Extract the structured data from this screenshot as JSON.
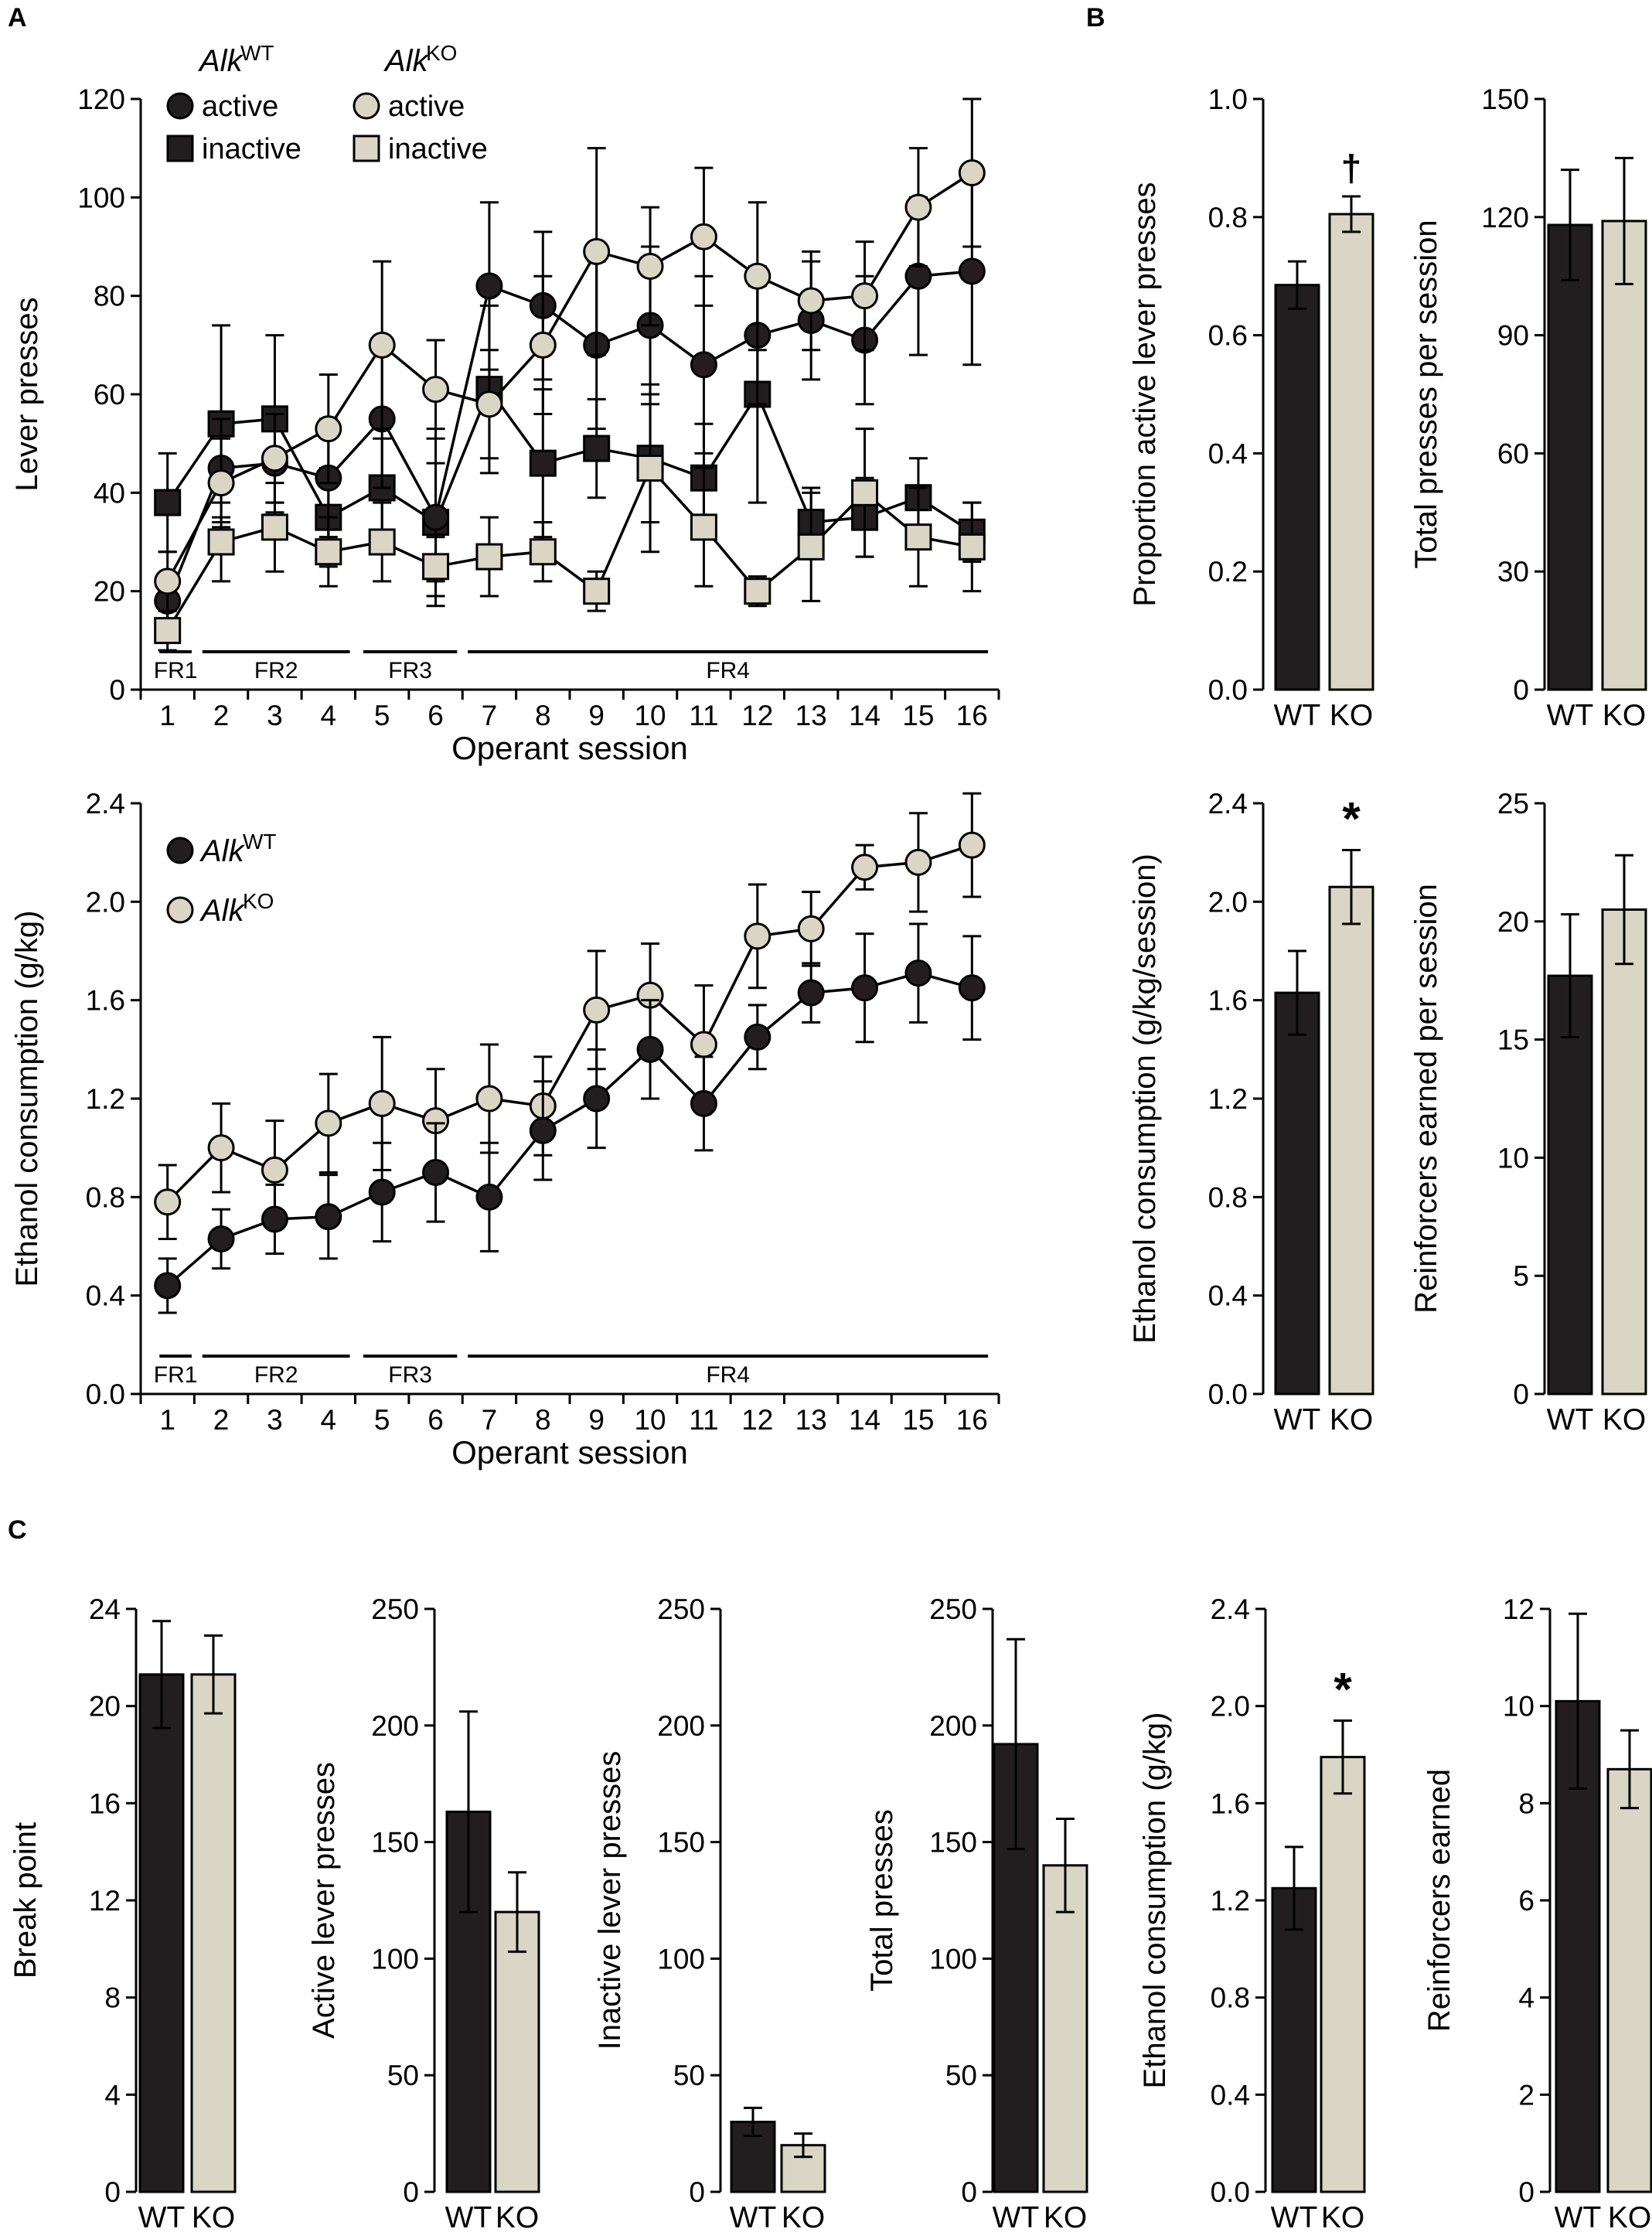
{
  "panel_labels": {
    "a": "A",
    "b": "B",
    "c": "C"
  },
  "colors": {
    "wt": "#221e1f",
    "ko": "#d9d6c5",
    "stroke": "#000000"
  },
  "chart_data": [
    {
      "id": "A-top",
      "type": "line",
      "panel": "A",
      "xlabel": "Operant session",
      "ylabel": "Lever presses",
      "ylim": [
        0,
        120
      ],
      "yticks": [
        0,
        20,
        40,
        60,
        80,
        100,
        120
      ],
      "x": [
        1,
        2,
        3,
        4,
        5,
        6,
        7,
        8,
        9,
        10,
        11,
        12,
        13,
        14,
        15,
        16
      ],
      "legend_group_labels": {
        "wt": "Alk",
        "wt_sup": "WT",
        "ko": "Alk",
        "ko_sup": "KO"
      },
      "series": [
        {
          "name": "Alk WT active",
          "legend_label": "active",
          "group": "wt",
          "marker": "circle",
          "values": [
            18,
            45,
            46,
            43,
            55,
            35,
            82,
            78,
            70,
            74,
            66,
            72,
            75,
            71,
            84,
            85
          ],
          "err": [
            5,
            10,
            10,
            12,
            14,
            18,
            17,
            15,
            17,
            16,
            18,
            14,
            12,
            13,
            16,
            19
          ]
        },
        {
          "name": "Alk KO active",
          "legend_label": "active",
          "group": "ko",
          "marker": "circle",
          "values": [
            22,
            42,
            47,
            53,
            70,
            61,
            58,
            70,
            89,
            86,
            92,
            84,
            79,
            80,
            98,
            105
          ],
          "err": [
            6,
            9,
            9,
            11,
            17,
            10,
            11,
            14,
            21,
            12,
            14,
            15,
            10,
            11,
            12,
            15
          ]
        },
        {
          "name": "Alk WT inactive",
          "legend_label": "inactive",
          "group": "wt",
          "marker": "square",
          "values": [
            38,
            54,
            55,
            35,
            41,
            34,
            61,
            46,
            49,
            47,
            43,
            60,
            34,
            35,
            39,
            32
          ],
          "err": [
            10,
            20,
            17,
            10,
            10,
            12,
            17,
            15,
            10,
            13,
            11,
            22,
            7,
            8,
            8,
            6
          ],
          "order": "back"
        },
        {
          "name": "Alk KO inactive",
          "legend_label": "inactive",
          "group": "ko",
          "marker": "square",
          "values": [
            12,
            30,
            33,
            28,
            30,
            25,
            27,
            28,
            20,
            45,
            33,
            20,
            29,
            40,
            31,
            29
          ],
          "err": [
            4,
            8,
            9,
            7,
            8,
            6,
            8,
            6,
            4,
            17,
            12,
            3,
            11,
            13,
            10,
            9
          ]
        }
      ],
      "schedule": [
        {
          "label": "FR1",
          "from": 0.85,
          "to": 1.45
        },
        {
          "label": "FR2",
          "from": 1.65,
          "to": 4.4
        },
        {
          "label": "FR3",
          "from": 4.65,
          "to": 6.4
        },
        {
          "label": "FR4",
          "from": 6.6,
          "to": 16.3
        }
      ]
    },
    {
      "id": "A-bottom",
      "type": "line",
      "panel": "A",
      "xlabel": "Operant session",
      "ylabel": "Ethanol consumption (g/kg)",
      "ylim": [
        0,
        2.4
      ],
      "yticks": [
        "0.0",
        "0.4",
        "0.8",
        "1.2",
        "1.6",
        "2.0",
        "2.4"
      ],
      "x": [
        1,
        2,
        3,
        4,
        5,
        6,
        7,
        8,
        9,
        10,
        11,
        12,
        13,
        14,
        15,
        16
      ],
      "legend": [
        {
          "label": "Alk",
          "sup": "WT",
          "group": "wt"
        },
        {
          "label": "Alk",
          "sup": "KO",
          "group": "ko"
        }
      ],
      "series": [
        {
          "name": "Alk KO",
          "group": "ko",
          "marker": "circle",
          "values": [
            0.78,
            1.0,
            0.91,
            1.1,
            1.18,
            1.11,
            1.2,
            1.17,
            1.56,
            1.62,
            1.42,
            1.86,
            1.89,
            2.14,
            2.16,
            2.23
          ],
          "err": [
            0.15,
            0.18,
            0.2,
            0.2,
            0.27,
            0.21,
            0.22,
            0.2,
            0.24,
            0.21,
            0.24,
            0.21,
            0.15,
            0.09,
            0.2,
            0.21
          ]
        },
        {
          "name": "Alk WT",
          "group": "wt",
          "marker": "circle",
          "values": [
            0.44,
            0.63,
            0.71,
            0.72,
            0.82,
            0.9,
            0.8,
            1.07,
            1.2,
            1.4,
            1.18,
            1.45,
            1.63,
            1.65,
            1.71,
            1.65
          ],
          "err": [
            0.11,
            0.12,
            0.14,
            0.17,
            0.2,
            0.2,
            0.22,
            0.2,
            0.2,
            0.2,
            0.19,
            0.13,
            0.12,
            0.22,
            0.2,
            0.21
          ]
        }
      ],
      "schedule": [
        {
          "label": "FR1",
          "from": 0.85,
          "to": 1.45
        },
        {
          "label": "FR2",
          "from": 1.65,
          "to": 4.4
        },
        {
          "label": "FR3",
          "from": 4.65,
          "to": 6.4
        },
        {
          "label": "FR4",
          "from": 6.6,
          "to": 16.3
        }
      ]
    },
    {
      "id": "B1",
      "type": "bar",
      "panel": "B",
      "ylabel": "Proportion active lever presses",
      "categories": [
        "WT",
        "KO"
      ],
      "values": [
        0.685,
        0.805
      ],
      "err": [
        0.04,
        0.03
      ],
      "ylim": [
        0,
        1.0
      ],
      "yticks": [
        "0.0",
        "0.2",
        "0.4",
        "0.6",
        "0.8",
        "1.0"
      ],
      "annotation": "†"
    },
    {
      "id": "B2",
      "type": "bar",
      "panel": "B",
      "ylabel": "Total presses per session",
      "categories": [
        "WT",
        "KO"
      ],
      "values": [
        118,
        119
      ],
      "err": [
        14,
        16
      ],
      "ylim": [
        0,
        150
      ],
      "yticks": [
        "0",
        "30",
        "60",
        "90",
        "120",
        "150"
      ]
    },
    {
      "id": "B3",
      "type": "bar",
      "panel": "B",
      "ylabel": "Ethanol consumption (g/kg/session)",
      "categories": [
        "WT",
        "KO"
      ],
      "values": [
        1.63,
        2.06
      ],
      "err": [
        0.17,
        0.15
      ],
      "ylim": [
        0,
        2.4
      ],
      "yticks": [
        "0.0",
        "0.4",
        "0.8",
        "1.2",
        "1.6",
        "2.0",
        "2.4"
      ],
      "annotation": "*"
    },
    {
      "id": "B4",
      "type": "bar",
      "panel": "B",
      "ylabel": "Reinforcers earned per session",
      "categories": [
        "WT",
        "KO"
      ],
      "values": [
        17.7,
        20.5
      ],
      "err": [
        2.6,
        2.3
      ],
      "ylim": [
        0,
        25
      ],
      "yticks": [
        "0",
        "5",
        "10",
        "15",
        "20",
        "25"
      ]
    },
    {
      "id": "C1",
      "type": "bar",
      "panel": "C",
      "ylabel": "Break point",
      "categories": [
        "WT",
        "KO"
      ],
      "values": [
        21.3,
        21.3
      ],
      "err": [
        2.2,
        1.6
      ],
      "ylim": [
        0,
        24
      ],
      "yticks": [
        "0",
        "4",
        "8",
        "12",
        "16",
        "20",
        "24"
      ]
    },
    {
      "id": "C2",
      "type": "bar",
      "panel": "C",
      "ylabel": "Active lever presses",
      "categories": [
        "WT",
        "KO"
      ],
      "values": [
        163,
        120
      ],
      "err": [
        43,
        17
      ],
      "ylim": [
        0,
        250
      ],
      "yticks": [
        "0",
        "50",
        "100",
        "150",
        "200",
        "250"
      ]
    },
    {
      "id": "C3",
      "type": "bar",
      "panel": "C",
      "ylabel": "Inactive lever presses",
      "categories": [
        "WT",
        "KO"
      ],
      "values": [
        30,
        20
      ],
      "err": [
        6,
        5
      ],
      "ylim": [
        0,
        250
      ],
      "yticks": [
        "0",
        "50",
        "100",
        "150",
        "200",
        "250"
      ]
    },
    {
      "id": "C4",
      "type": "bar",
      "panel": "C",
      "ylabel": "Total presses",
      "categories": [
        "WT",
        "KO"
      ],
      "values": [
        192,
        140
      ],
      "err": [
        45,
        20
      ],
      "ylim": [
        0,
        250
      ],
      "yticks": [
        "0",
        "50",
        "100",
        "150",
        "200",
        "250"
      ]
    },
    {
      "id": "C5",
      "type": "bar",
      "panel": "C",
      "ylabel": "Ethanol consumption (g/kg)",
      "categories": [
        "WT",
        "KO"
      ],
      "values": [
        1.25,
        1.79
      ],
      "err": [
        0.17,
        0.15
      ],
      "ylim": [
        0,
        2.4
      ],
      "yticks": [
        "0.0",
        "0.4",
        "0.8",
        "1.2",
        "1.6",
        "2.0",
        "2.4"
      ],
      "annotation": "*"
    },
    {
      "id": "C6",
      "type": "bar",
      "panel": "C",
      "ylabel": "Reinforcers earned",
      "categories": [
        "WT",
        "KO"
      ],
      "values": [
        10.1,
        8.7
      ],
      "err": [
        1.8,
        0.8
      ],
      "ylim": [
        0,
        12
      ],
      "yticks": [
        "0",
        "2",
        "4",
        "6",
        "8",
        "10",
        "12"
      ]
    }
  ]
}
